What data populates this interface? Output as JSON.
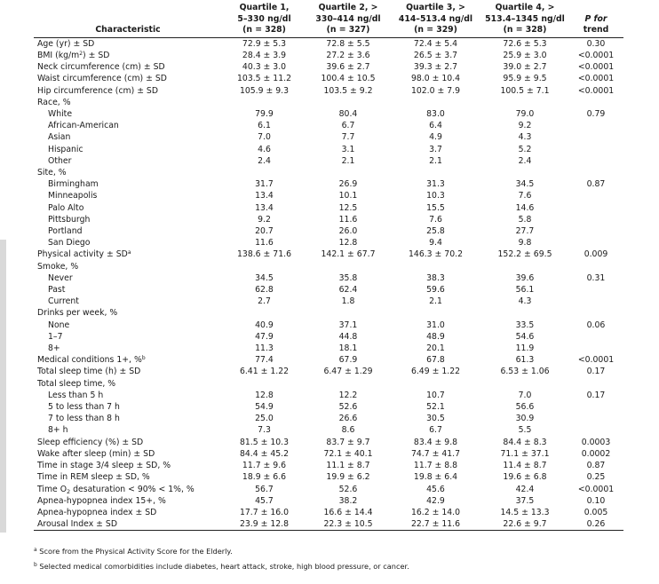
{
  "header": {
    "characteristic": "Characteristic",
    "quartiles": [
      {
        "l1": "Quartile 1,",
        "l2": "5–330 ng/dl",
        "l3": "(n = 328)"
      },
      {
        "l1": "Quartile 2, >",
        "l2": "330–414 ng/dl",
        "l3": "(n = 327)"
      },
      {
        "l1": "Quartile 3, >",
        "l2": "414–513.4 ng/dl",
        "l3": "(n = 329)"
      },
      {
        "l1": "Quartile 4, >",
        "l2": "513.4–1345 ng/dl",
        "l3": "(n = 328)"
      }
    ],
    "p_l1": "P for",
    "p_l2": "trend"
  },
  "rows": [
    {
      "label": "Age (yr) ± SD",
      "q1": "72.9 ± 5.3",
      "q2": "72.8 ± 5.5",
      "q3": "72.4 ± 5.4",
      "q4": "72.6 ± 5.3",
      "p": "0.30"
    },
    {
      "label_pre": "BMI (kg/m",
      "label_sup": "2",
      "label_post": ") ± SD",
      "q1": "28.4 ± 3.9",
      "q2": "27.2 ± 3.6",
      "q3": "26.5 ± 3.7",
      "q4": "25.9 ± 3.0",
      "p": "<0.0001"
    },
    {
      "label": "Neck circumference (cm) ± SD",
      "q1": "40.3 ± 3.0",
      "q2": "39.6 ± 2.7",
      "q3": "39.3 ± 2.7",
      "q4": "39.0 ± 2.7",
      "p": "<0.0001"
    },
    {
      "label": "Waist circumference (cm) ± SD",
      "q1": "103.5 ± 11.2",
      "q2": "100.4 ± 10.5",
      "q3": "98.0 ± 10.4",
      "q4": "95.9 ± 9.5",
      "p": "<0.0001"
    },
    {
      "label": "Hip circumference (cm) ± SD",
      "q1": "105.9 ± 9.3",
      "q2": "103.5 ± 9.2",
      "q3": "102.0 ± 7.9",
      "q4": "100.5 ± 7.1",
      "p": "<0.0001"
    },
    {
      "label": "Race, %",
      "q1": "",
      "q2": "",
      "q3": "",
      "q4": "",
      "p": ""
    },
    {
      "label": "White",
      "q1": "79.9",
      "q2": "80.4",
      "q3": "83.0",
      "q4": "79.0",
      "p": "0.79"
    },
    {
      "label": "African-American",
      "q1": "6.1",
      "q2": "6.7",
      "q3": "6.4",
      "q4": "9.2",
      "p": ""
    },
    {
      "label": "Asian",
      "q1": "7.0",
      "q2": "7.7",
      "q3": "4.9",
      "q4": "4.3",
      "p": ""
    },
    {
      "label": "Hispanic",
      "q1": "4.6",
      "q2": "3.1",
      "q3": "3.7",
      "q4": "5.2",
      "p": ""
    },
    {
      "label": "Other",
      "q1": "2.4",
      "q2": "2.1",
      "q3": "2.1",
      "q4": "2.4",
      "p": ""
    },
    {
      "label": "Site, %",
      "q1": "",
      "q2": "",
      "q3": "",
      "q4": "",
      "p": ""
    },
    {
      "label": "Birmingham",
      "q1": "31.7",
      "q2": "26.9",
      "q3": "31.3",
      "q4": "34.5",
      "p": "0.87"
    },
    {
      "label": "Minneapolis",
      "q1": "13.4",
      "q2": "10.1",
      "q3": "10.3",
      "q4": "7.6",
      "p": ""
    },
    {
      "label": "Palo Alto",
      "q1": "13.4",
      "q2": "12.5",
      "q3": "15.5",
      "q4": "14.6",
      "p": ""
    },
    {
      "label": "Pittsburgh",
      "q1": "9.2",
      "q2": "11.6",
      "q3": "7.6",
      "q4": "5.8",
      "p": ""
    },
    {
      "label": "Portland",
      "q1": "20.7",
      "q2": "26.0",
      "q3": "25.8",
      "q4": "27.7",
      "p": ""
    },
    {
      "label": "San Diego",
      "q1": "11.6",
      "q2": "12.8",
      "q3": "9.4",
      "q4": "9.8",
      "p": ""
    },
    {
      "label_pre": "Physical activity ± SD",
      "label_sup": "a",
      "label_post": "",
      "q1": "138.6 ± 71.6",
      "q2": "142.1 ± 67.7",
      "q3": "146.3 ± 70.2",
      "q4": "152.2 ± 69.5",
      "p": "0.009"
    },
    {
      "label": "Smoke, %",
      "q1": "",
      "q2": "",
      "q3": "",
      "q4": "",
      "p": ""
    },
    {
      "label": "Never",
      "q1": "34.5",
      "q2": "35.8",
      "q3": "38.3",
      "q4": "39.6",
      "p": "0.31"
    },
    {
      "label": "Past",
      "q1": "62.8",
      "q2": "62.4",
      "q3": "59.6",
      "q4": "56.1",
      "p": ""
    },
    {
      "label": "Current",
      "q1": "2.7",
      "q2": "1.8",
      "q3": "2.1",
      "q4": "4.3",
      "p": ""
    },
    {
      "label": "Drinks per week, %",
      "q1": "",
      "q2": "",
      "q3": "",
      "q4": "",
      "p": ""
    },
    {
      "label": "None",
      "q1": "40.9",
      "q2": "37.1",
      "q3": "31.0",
      "q4": "33.5",
      "p": "0.06"
    },
    {
      "label": "1–7",
      "q1": "47.9",
      "q2": "44.8",
      "q3": "48.9",
      "q4": "54.6",
      "p": ""
    },
    {
      "label": "8+",
      "q1": "11.3",
      "q2": "18.1",
      "q3": "20.1",
      "q4": "11.9",
      "p": ""
    },
    {
      "label_pre": "Medical conditions 1+, %",
      "label_sup": "b",
      "label_post": "",
      "q1": "77.4",
      "q2": "67.9",
      "q3": "67.8",
      "q4": "61.3",
      "p": "<0.0001"
    },
    {
      "label": "Total sleep time (h) ± SD",
      "q1": "6.41 ± 1.22",
      "q2": "6.47 ± 1.29",
      "q3": "6.49 ± 1.22",
      "q4": "6.53 ± 1.06",
      "p": "0.17"
    },
    {
      "label": "Total sleep time, %",
      "q1": "",
      "q2": "",
      "q3": "",
      "q4": "",
      "p": ""
    },
    {
      "label": "Less than 5 h",
      "q1": "12.8",
      "q2": "12.2",
      "q3": "10.7",
      "q4": "7.0",
      "p": "0.17"
    },
    {
      "label": "5 to less than 7 h",
      "q1": "54.9",
      "q2": "52.6",
      "q3": "52.1",
      "q4": "56.6",
      "p": ""
    },
    {
      "label": "7 to less than 8 h",
      "q1": "25.0",
      "q2": "26.6",
      "q3": "30.5",
      "q4": "30.9",
      "p": ""
    },
    {
      "label": "8+ h",
      "q1": "7.3",
      "q2": "8.6",
      "q3": "6.7",
      "q4": "5.5",
      "p": ""
    },
    {
      "label": "Sleep efficiency (%) ± SD",
      "q1": "81.5 ± 10.3",
      "q2": "83.7 ± 9.7",
      "q3": "83.4 ± 9.8",
      "q4": "84.4 ± 8.3",
      "p": "0.0003"
    },
    {
      "label": "Wake after sleep (min) ± SD",
      "q1": "84.4 ± 45.2",
      "q2": "72.1 ± 40.1",
      "q3": "74.7 ± 41.7",
      "q4": "71.1 ± 37.1",
      "p": "0.0002"
    },
    {
      "label": "Time in stage 3/4 sleep ± SD, %",
      "q1": "11.7 ± 9.6",
      "q2": "11.1 ± 8.7",
      "q3": "11.7 ± 8.8",
      "q4": "11.4 ± 8.7",
      "p": "0.87"
    },
    {
      "label": "Time in REM sleep ± SD, %",
      "q1": "18.9 ± 6.6",
      "q2": "19.9 ± 6.2",
      "q3": "19.8 ± 6.4",
      "q4": "19.6 ± 6.8",
      "p": "0.25"
    },
    {
      "label_pre": "Time O",
      "label_sub": "2",
      "label_post": " desaturation < 90% < 1%, %",
      "q1": "56.7",
      "q2": "52.6",
      "q3": "45.6",
      "q4": "42.4",
      "p": "<0.0001"
    },
    {
      "label": "Apnea-hypopnea index 15+, %",
      "q1": "45.7",
      "q2": "38.2",
      "q3": "42.9",
      "q4": "37.5",
      "p": "0.10"
    },
    {
      "label": "Apnea-hypopnea index ± SD",
      "q1": "17.7 ± 16.0",
      "q2": "16.6 ± 14.4",
      "q3": "16.2 ± 14.0",
      "q4": "14.5 ± 13.3",
      "p": "0.005"
    },
    {
      "label": "Arousal Index ± SD",
      "q1": "23.9 ± 12.8",
      "q2": "22.3 ± 10.5",
      "q3": "22.7 ± 11.6",
      "q4": "22.6 ± 9.7",
      "p": "0.26"
    }
  ],
  "footnotes": [
    {
      "mark": "a",
      "text": "Score from the Physical Activity Score for the Elderly."
    },
    {
      "mark": "b",
      "text": "Selected medical comorbidities include diabetes, heart attack, stroke, high blood pressure, or cancer."
    }
  ]
}
